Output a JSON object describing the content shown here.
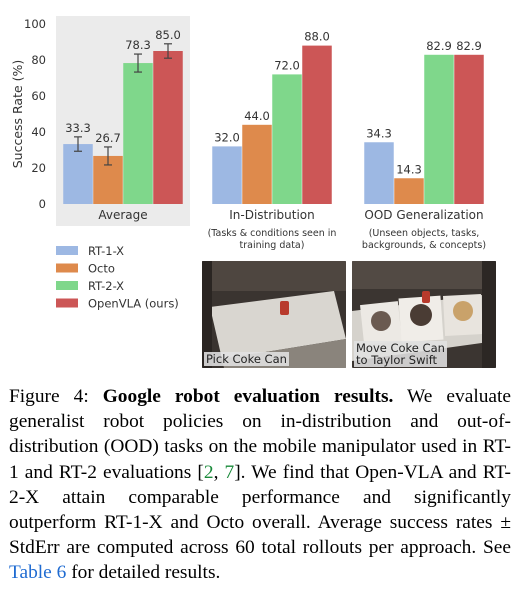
{
  "chart_data": {
    "type": "bar",
    "ylabel": "Success Rate (%)",
    "ylim": [
      0,
      100
    ],
    "yticks": [
      0,
      20,
      40,
      60,
      80,
      100
    ],
    "legend_placement": "bottom-left",
    "groups": [
      {
        "label": "Average",
        "sublabel": "",
        "highlighted": true
      },
      {
        "label": "In-Distribution",
        "sublabel": "(Tasks & conditions seen in\ntraining data)",
        "highlighted": false
      },
      {
        "label": "OOD Generalization",
        "sublabel": "(Unseen objects, tasks,\nbackgrounds, & concepts)",
        "highlighted": false
      }
    ],
    "series": [
      {
        "name": "RT-1-X",
        "color": "#9db8e3",
        "values": [
          33.3,
          32.0,
          34.3
        ],
        "labels": [
          "33.3",
          "32.0",
          "34.3"
        ],
        "errors": [
          4,
          null,
          null
        ]
      },
      {
        "name": "Octo",
        "color": "#de8a4c",
        "values": [
          26.7,
          44.0,
          14.3
        ],
        "labels": [
          "26.7",
          "44.0",
          "14.3"
        ],
        "errors": [
          5,
          null,
          null
        ]
      },
      {
        "name": "RT-2-X",
        "color": "#7fd78b",
        "values": [
          78.3,
          72.0,
          82.9
        ],
        "labels": [
          "78.3",
          "72.0",
          "82.9"
        ],
        "errors": [
          5,
          null,
          null
        ]
      },
      {
        "name": "OpenVLA (ours)",
        "color": "#cc5656",
        "values": [
          85.0,
          88.0,
          82.9
        ],
        "labels": [
          "85.0",
          "88.0",
          "82.9"
        ],
        "errors": [
          4,
          null,
          null
        ]
      }
    ]
  },
  "photos": [
    {
      "caption": "Pick Coke Can"
    },
    {
      "caption": "Move Coke Can\nto Taylor Swift"
    }
  ],
  "caption": {
    "prefix": "Figure 4: ",
    "title": "Google robot evaluation results.",
    "body1": " We evaluate generalist robot policies on in-distribution and out-of-distribution (OOD) tasks on the mobile manipulator used in RT-1 and RT-2 evaluations [",
    "cite1": "2",
    "sep": ", ",
    "cite2": "7",
    "body2": "]. We find that Open-VLA and RT-2-X attain comparable performance and significantly outperform RT-1-X and Octo overall. Average success rates ± StdErr are computed across 60 total rollouts per approach. See ",
    "ref": "Table 6",
    "body3": " for detailed results."
  }
}
